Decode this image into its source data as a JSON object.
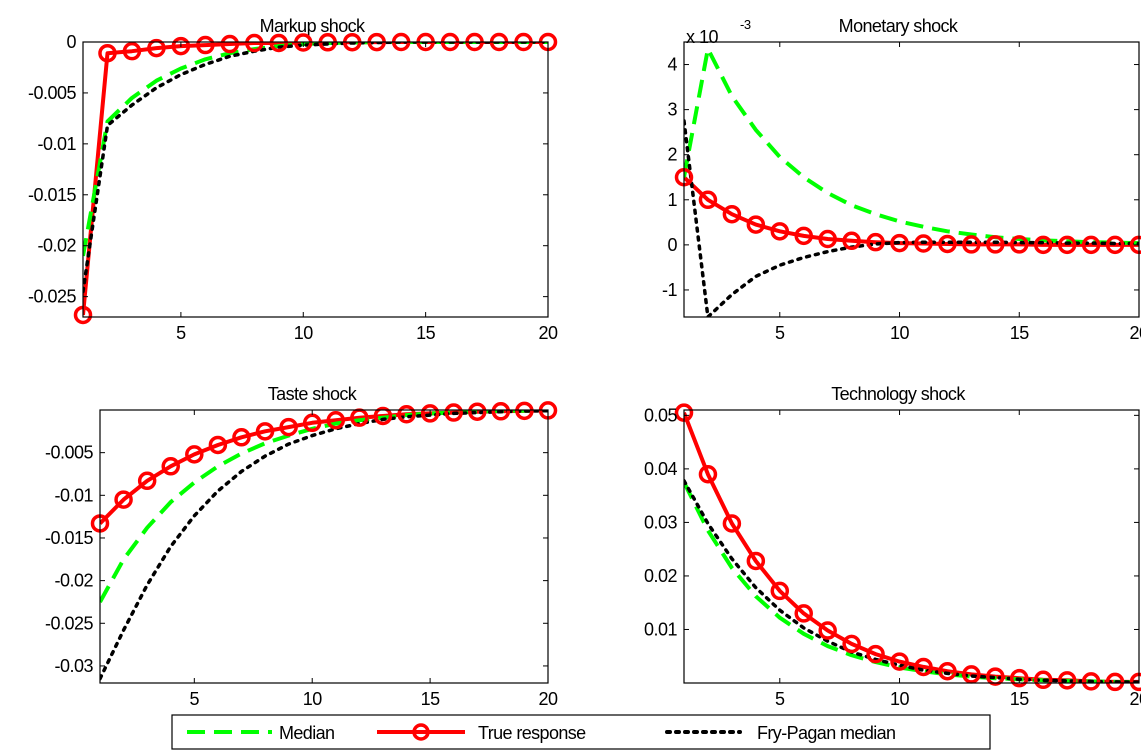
{
  "chart_data": [
    {
      "type": "line",
      "title": "Markup shock",
      "x": [
        1,
        2,
        3,
        4,
        5,
        6,
        7,
        8,
        9,
        10,
        11,
        12,
        13,
        14,
        15,
        16,
        17,
        18,
        19,
        20
      ],
      "xlim": [
        1,
        20
      ],
      "ylim": [
        -0.027,
        0.0
      ],
      "xticks": [
        5,
        10,
        15,
        20
      ],
      "yticks": [
        0,
        -0.005,
        -0.01,
        -0.015,
        -0.02,
        -0.025
      ],
      "ytick_labels": [
        "0",
        "-0.005",
        "-0.01",
        "-0.015",
        "-0.02",
        "-0.025"
      ],
      "scale_label": "",
      "series": [
        {
          "name": "Median",
          "style": "dashed",
          "color": "#00ff00",
          "values": [
            -0.021,
            -0.0078,
            -0.0055,
            -0.0038,
            -0.0026,
            -0.0017,
            -0.0011,
            -0.0007,
            -0.0004,
            -0.0002,
            -0.0001,
            -5e-05,
            0,
            0,
            0,
            0,
            0,
            0,
            0,
            0
          ]
        },
        {
          "name": "True response",
          "style": "solid-circle",
          "color": "#ff0000",
          "values": [
            -0.0268,
            -0.0011,
            -0.0009,
            -0.0006,
            -0.0004,
            -0.0003,
            -0.0002,
            -0.0001,
            -0.0001,
            -5e-05,
            -3e-05,
            -2e-05,
            -1e-05,
            0,
            0,
            0,
            0,
            0,
            0,
            0
          ]
        },
        {
          "name": "Fry-Pagan median",
          "style": "dotted",
          "color": "#000000",
          "values": [
            -0.0245,
            -0.0082,
            -0.0062,
            -0.0045,
            -0.0032,
            -0.0022,
            -0.0014,
            -0.0009,
            -0.0005,
            -0.0003,
            -0.0002,
            -0.0001,
            -5e-05,
            0,
            0,
            0,
            0,
            0,
            0,
            0
          ]
        }
      ]
    },
    {
      "type": "line",
      "title": "Monetary shock",
      "x": [
        1,
        2,
        3,
        4,
        5,
        6,
        7,
        8,
        9,
        10,
        11,
        12,
        13,
        14,
        15,
        16,
        17,
        18,
        19,
        20
      ],
      "xlim": [
        1,
        20
      ],
      "ylim": [
        -1.6,
        4.5
      ],
      "xticks": [
        5,
        10,
        15,
        20
      ],
      "yticks": [
        4,
        3,
        2,
        1,
        0,
        -1
      ],
      "ytick_labels": [
        "4",
        "3",
        "2",
        "1",
        "0",
        "-1"
      ],
      "scale_label": "x 10",
      "scale_exponent": "-3",
      "series": [
        {
          "name": "Median",
          "style": "dashed",
          "color": "#00ff00",
          "values": [
            1.5,
            4.35,
            3.3,
            2.55,
            1.95,
            1.5,
            1.15,
            0.88,
            0.68,
            0.52,
            0.4,
            0.3,
            0.23,
            0.17,
            0.13,
            0.1,
            0.08,
            0.06,
            0.05,
            0.04
          ]
        },
        {
          "name": "True response",
          "style": "solid-circle",
          "color": "#ff0000",
          "values": [
            1.5,
            1.0,
            0.68,
            0.45,
            0.3,
            0.2,
            0.13,
            0.09,
            0.06,
            0.04,
            0.03,
            0.02,
            0.01,
            0.01,
            0.01,
            0.0,
            0.0,
            0.0,
            0.0,
            0.0
          ]
        },
        {
          "name": "Fry-Pagan median",
          "style": "dotted",
          "color": "#000000",
          "values": [
            2.75,
            -1.6,
            -1.1,
            -0.7,
            -0.45,
            -0.28,
            -0.15,
            -0.05,
            0.02,
            0.05,
            0.06,
            0.06,
            0.06,
            0.06,
            0.05,
            0.05,
            0.04,
            0.04,
            0.03,
            0.03
          ]
        }
      ]
    },
    {
      "type": "line",
      "title": "Taste shock",
      "x": [
        1,
        2,
        3,
        4,
        5,
        6,
        7,
        8,
        9,
        10,
        11,
        12,
        13,
        14,
        15,
        16,
        17,
        18,
        19,
        20
      ],
      "xlim": [
        1,
        20
      ],
      "ylim": [
        -0.032,
        0.0
      ],
      "xticks": [
        5,
        10,
        15,
        20
      ],
      "yticks": [
        -0.005,
        -0.01,
        -0.015,
        -0.02,
        -0.025,
        -0.03
      ],
      "ytick_labels": [
        "-0.005",
        "-0.01",
        "-0.015",
        "-0.02",
        "-0.025",
        "-0.03"
      ],
      "scale_label": "",
      "series": [
        {
          "name": "Median",
          "style": "dashed",
          "color": "#00ff00",
          "values": [
            -0.0225,
            -0.0175,
            -0.0138,
            -0.0108,
            -0.0085,
            -0.0066,
            -0.0051,
            -0.0039,
            -0.003,
            -0.0022,
            -0.0016,
            -0.0012,
            -0.0009,
            -0.0006,
            -0.0004,
            -0.0003,
            -0.0002,
            -0.0001,
            -8e-05,
            -5e-05
          ]
        },
        {
          "name": "True response",
          "style": "solid-circle",
          "color": "#ff0000",
          "values": [
            -0.0133,
            -0.0105,
            -0.0083,
            -0.0066,
            -0.0052,
            -0.0041,
            -0.0032,
            -0.0025,
            -0.002,
            -0.0015,
            -0.0012,
            -0.0009,
            -0.0007,
            -0.0005,
            -0.0004,
            -0.0003,
            -0.0002,
            -0.00015,
            -0.0001,
            -5e-05
          ]
        },
        {
          "name": "Fry-Pagan median",
          "style": "dotted",
          "color": "#000000",
          "values": [
            -0.0315,
            -0.0258,
            -0.0205,
            -0.016,
            -0.0124,
            -0.0095,
            -0.0072,
            -0.0054,
            -0.004,
            -0.003,
            -0.0022,
            -0.0016,
            -0.0011,
            -0.0008,
            -0.0006,
            -0.0004,
            -0.0003,
            -0.0002,
            -0.00012,
            -8e-05
          ]
        }
      ]
    },
    {
      "type": "line",
      "title": "Technology shock",
      "x": [
        1,
        2,
        3,
        4,
        5,
        6,
        7,
        8,
        9,
        10,
        11,
        12,
        13,
        14,
        15,
        16,
        17,
        18,
        19,
        20
      ],
      "xlim": [
        1,
        20
      ],
      "ylim": [
        0.0,
        0.051
      ],
      "xticks": [
        5,
        10,
        15,
        20
      ],
      "yticks": [
        0.05,
        0.04,
        0.03,
        0.02,
        0.01
      ],
      "ytick_labels": [
        "0.05",
        "0.04",
        "0.03",
        "0.02",
        "0.01"
      ],
      "scale_label": "",
      "series": [
        {
          "name": "Median",
          "style": "dashed",
          "color": "#00ff00",
          "values": [
            0.0375,
            0.0285,
            0.0215,
            0.0162,
            0.0122,
            0.0092,
            0.0069,
            0.0052,
            0.0039,
            0.0029,
            0.0022,
            0.0016,
            0.0012,
            0.0009,
            0.0007,
            0.0005,
            0.0004,
            0.0003,
            0.0002,
            0.00015
          ]
        },
        {
          "name": "True response",
          "style": "solid-circle",
          "color": "#ff0000",
          "values": [
            0.0505,
            0.039,
            0.0298,
            0.0228,
            0.0172,
            0.013,
            0.0098,
            0.0073,
            0.0054,
            0.004,
            0.003,
            0.0022,
            0.0016,
            0.0012,
            0.0009,
            0.0006,
            0.0005,
            0.0003,
            0.0002,
            0.0002
          ]
        },
        {
          "name": "Fry-Pagan median",
          "style": "dotted",
          "color": "#000000",
          "values": [
            0.0378,
            0.0298,
            0.0232,
            0.0178,
            0.0136,
            0.0103,
            0.0078,
            0.0058,
            0.0044,
            0.0033,
            0.0024,
            0.0018,
            0.0013,
            0.001,
            0.0007,
            0.0005,
            0.0004,
            0.0003,
            0.0002,
            0.00015
          ]
        }
      ]
    }
  ],
  "legend": {
    "entries": [
      {
        "label": "Median",
        "style": "dashed",
        "color": "#00ff00"
      },
      {
        "label": "True response",
        "style": "solid-circle",
        "color": "#ff0000"
      },
      {
        "label": "Fry-Pagan median",
        "style": "dotted",
        "color": "#000000"
      }
    ]
  }
}
